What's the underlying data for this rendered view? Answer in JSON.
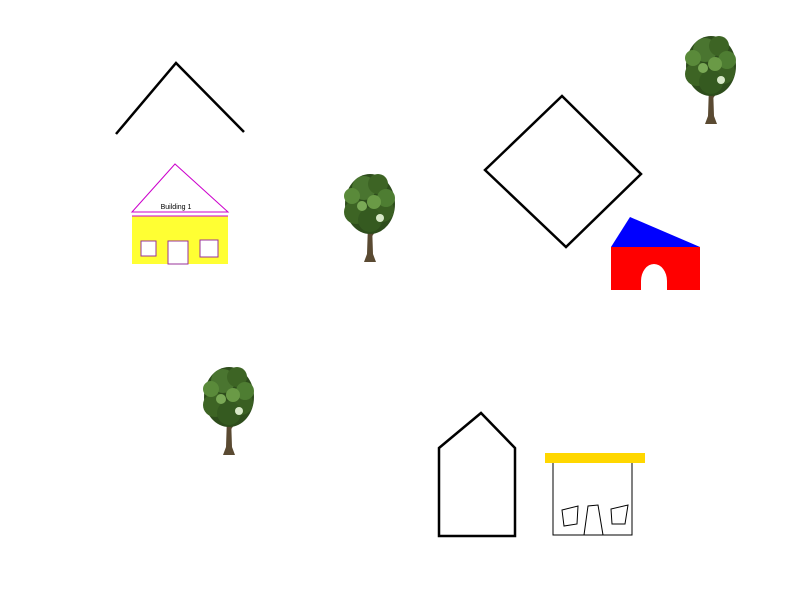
{
  "building1": {
    "label": "Building 1",
    "wall_color": "#ffff33",
    "outline_color": "#cc00cc"
  },
  "red_building": {
    "roof_color": "#0000ff",
    "wall_color": "#ff0000"
  },
  "canopy_building": {
    "canopy_color": "#ffd700"
  },
  "outline_color": "#000000",
  "trees": [
    {
      "icon": "tree-icon"
    },
    {
      "icon": "tree-icon"
    },
    {
      "icon": "tree-icon"
    }
  ]
}
